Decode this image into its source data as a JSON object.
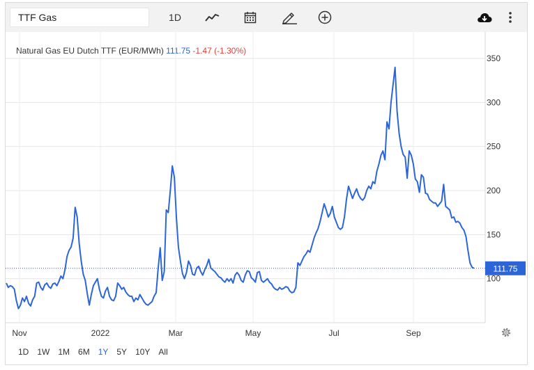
{
  "toolbar": {
    "search_value": "TTF Gas",
    "interval_label": "1D",
    "icons": [
      "line-chart-icon",
      "calendar-icon",
      "pencil-icon",
      "plus-circle-icon",
      "cloud-download-icon",
      "more-vertical-icon"
    ]
  },
  "header": {
    "name": "Natural Gas EU Dutch TTF (EUR/MWh)",
    "last": "111.75",
    "change": "-1.47 (-1.30%)"
  },
  "ranges": [
    "1D",
    "1W",
    "1M",
    "6M",
    "1Y",
    "5Y",
    "10Y",
    "All"
  ],
  "active_range": "1Y",
  "colors": {
    "line": "#2c65d8",
    "change_negative": "#e0423a",
    "last_badge": "#2c65d8"
  },
  "chart_data": {
    "type": "line",
    "title": "Natural Gas EU Dutch TTF (EUR/MWh)",
    "xlabel": "",
    "ylabel": "",
    "ylim": [
      50,
      380
    ],
    "yticks": [
      100,
      150,
      200,
      250,
      300,
      350
    ],
    "x_ticks": [
      "Nov",
      "2022",
      "Mar",
      "May",
      "Jul",
      "Sep"
    ],
    "grid": true,
    "last_value": 111.75,
    "series": [
      {
        "values": [
          95,
          90,
          92,
          91,
          88,
          75,
          66,
          70,
          78,
          74,
          80,
          72,
          69,
          76,
          80,
          95,
          96,
          90,
          87,
          93,
          95,
          91,
          89,
          94,
          95,
          92,
          97,
          103,
          100,
          110,
          125,
          132,
          136,
          146,
          181,
          170,
          140,
          120,
          105,
          98,
          83,
          70,
          82,
          92,
          96,
          100,
          88,
          80,
          78,
          86,
          90,
          80,
          76,
          75,
          80,
          95,
          92,
          88,
          90,
          85,
          82,
          80,
          80,
          74,
          78,
          76,
          82,
          78,
          74,
          71,
          70,
          72,
          74,
          80,
          84,
          112,
          135,
          98,
          108,
          178,
          175,
          200,
          228,
          215,
          170,
          136,
          120,
          106,
          100,
          107,
          120,
          115,
          105,
          104,
          112,
          114,
          108,
          104,
          110,
          115,
          122,
          112,
          110,
          108,
          105,
          102,
          101,
          98,
          96,
          100,
          97,
          100,
          95,
          104,
          107,
          104,
          98,
          96,
          104,
          109,
          108,
          101,
          99,
          96,
          107,
          108,
          98,
          96,
          98,
          100,
          96,
          94,
          90,
          88,
          87,
          90,
          88,
          89,
          91,
          90,
          86,
          84,
          85,
          90,
          118,
          115,
          120,
          125,
          128,
          132,
          130,
          138,
          146,
          152,
          157,
          165,
          175,
          185,
          178,
          170,
          174,
          182,
          170,
          164,
          158,
          156,
          158,
          170,
          190,
          205,
          198,
          191,
          197,
          202,
          195,
          191,
          189,
          192,
          200,
          205,
          202,
          210,
          208,
          222,
          230,
          240,
          245,
          235,
          278,
          270,
          300,
          320,
          340,
          290,
          265,
          250,
          241,
          238,
          214,
          245,
          240,
          230,
          213,
          210,
          198,
          218,
          215,
          197,
          196,
          190,
          188,
          186,
          186,
          182,
          185,
          188,
          207,
          182,
          180,
          178,
          169,
          170,
          164,
          165,
          163,
          158,
          155,
          148,
          132,
          118,
          113,
          111.75
        ]
      }
    ]
  }
}
